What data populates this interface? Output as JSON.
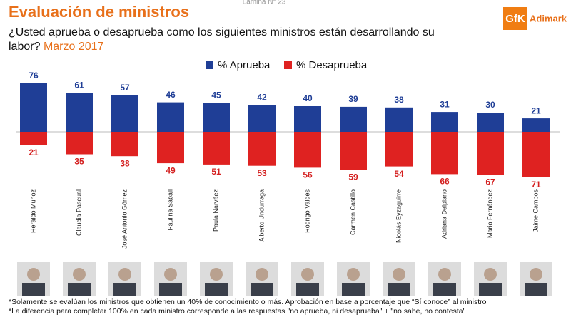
{
  "chart_data": {
    "type": "bar",
    "page_label": "Lámina N° 23",
    "title": "Evaluación de ministros",
    "subtitle": "¿Usted aprueba o desaprueba como los siguientes ministros están desarrollando su labor?",
    "subtitle_date": "Marzo 2017",
    "logo": {
      "mark": "GfK",
      "name": "Adimark"
    },
    "categories": [
      "Heraldo Muñoz",
      "Claudia Pascual",
      "José Antonio Gómez",
      "Paulina Saball",
      "Paula Narváez",
      "Alberto Undurraga",
      "Rodrigo Valdés",
      "Carmen Castillo",
      "Nicolás Eyzaguirre",
      "Adriana Delpiano",
      "Mario Fernández",
      "Jaime Campos"
    ],
    "series": [
      {
        "name": "% Aprueba",
        "color": "#1f3e96",
        "label_color": "#1f3e96",
        "values": [
          76,
          61,
          57,
          46,
          45,
          42,
          40,
          39,
          38,
          31,
          30,
          21
        ]
      },
      {
        "name": "% Desaprueba",
        "color": "#df2221",
        "label_color": "#d42020",
        "values": [
          21,
          35,
          38,
          49,
          51,
          53,
          56,
          59,
          54,
          66,
          67,
          71
        ]
      }
    ],
    "footnotes": [
      "*Solamente se evalúan los ministros que obtienen un 40% de conocimiento o más. Aprobación en base a porcentaje que “Sí conoce” al ministro",
      "*La diferencia para completar 100% en cada ministro corresponde a las respuestas \"no aprueba, ni desaprueba\" + \"no sabe, no contesta\""
    ]
  }
}
